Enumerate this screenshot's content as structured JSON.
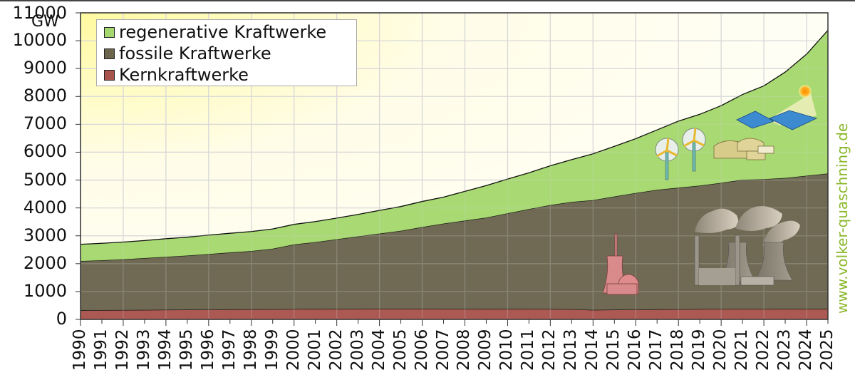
{
  "chart_data": {
    "type": "area",
    "stacked": true,
    "title": "",
    "xlabel": "",
    "ylabel": "GW",
    "ylim": [
      0,
      11000
    ],
    "yticks": [
      0,
      1000,
      2000,
      3000,
      4000,
      5000,
      6000,
      7000,
      8000,
      9000,
      10000,
      11000
    ],
    "grid": true,
    "legend_position": "top-left",
    "x": [
      1990,
      1991,
      1992,
      1993,
      1994,
      1995,
      1996,
      1997,
      1998,
      1999,
      2000,
      2001,
      2002,
      2003,
      2004,
      2005,
      2006,
      2007,
      2008,
      2009,
      2010,
      2011,
      2012,
      2013,
      2014,
      2015,
      2016,
      2017,
      2018,
      2019,
      2020,
      2021,
      2022,
      2023,
      2024,
      2025
    ],
    "series": [
      {
        "name": "Kernkraftwerke",
        "color": "#a8544c",
        "values": [
          325,
          330,
          335,
          340,
          345,
          350,
          355,
          360,
          362,
          365,
          370,
          372,
          375,
          378,
          380,
          380,
          382,
          378,
          375,
          372,
          375,
          370,
          372,
          365,
          340,
          350,
          355,
          360,
          365,
          370,
          370,
          370,
          370,
          375,
          375,
          375
        ]
      },
      {
        "name": "fossile Kraftwerke",
        "color": "#6b654e",
        "values": [
          1770,
          1790,
          1820,
          1860,
          1900,
          1940,
          1990,
          2040,
          2090,
          2170,
          2320,
          2400,
          2500,
          2600,
          2700,
          2800,
          2930,
          3060,
          3170,
          3280,
          3430,
          3590,
          3730,
          3850,
          3940,
          4060,
          4180,
          4290,
          4360,
          4430,
          4530,
          4640,
          4660,
          4700,
          4780,
          4860
        ]
      },
      {
        "name": "regenerative Kraftwerke",
        "color": "#a5d86e",
        "values": [
          600,
          610,
          620,
          630,
          650,
          660,
          680,
          690,
          700,
          710,
          720,
          740,
          760,
          790,
          830,
          870,
          920,
          950,
          1050,
          1150,
          1230,
          1300,
          1410,
          1520,
          1660,
          1800,
          1950,
          2150,
          2390,
          2560,
          2770,
          3060,
          3350,
          3800,
          4360,
          5140
        ]
      }
    ],
    "totals_approx": {
      "1990": 2695,
      "2000": 3410,
      "2010": 5035,
      "2020": 7670,
      "2025": 10375
    }
  },
  "labels": {
    "unit": "GW",
    "legend": [
      "regenerative Kraftwerke",
      "fossile Kraftwerke",
      "Kernkraftwerke"
    ],
    "watermark": "www.volker-quaschning.de"
  },
  "illustrations": [
    "wind-turbines",
    "biogas-plant",
    "solar-panels",
    "sun",
    "coal-power-plant-with-cooling-towers",
    "nuclear-power-plant"
  ]
}
